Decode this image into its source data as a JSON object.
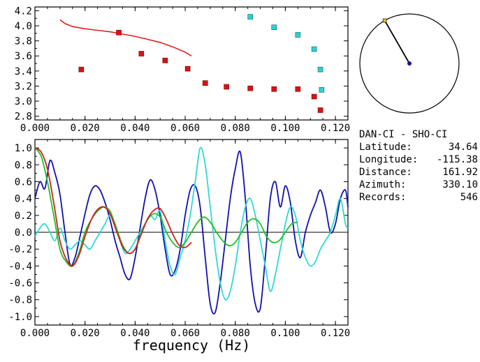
{
  "info": {
    "title": "DAN-CI - SHO-CI",
    "rows": [
      {
        "label": "Latitude:",
        "value": "34.64"
      },
      {
        "label": "Longitude:",
        "value": "-115.38"
      },
      {
        "label": "Distance:",
        "value": "161.92"
      },
      {
        "label": "Azimuth:",
        "value": "330.10"
      },
      {
        "label": "Records:",
        "value": "546"
      }
    ]
  },
  "chart_data": [
    {
      "type": "scatter",
      "xlim": [
        0.0,
        0.125
      ],
      "ylim": [
        2.75,
        4.25
      ],
      "xticks": [
        "0.000",
        "0.020",
        "0.040",
        "0.060",
        "0.080",
        "0.100",
        "0.120"
      ],
      "yticks": [
        "2.8",
        "3.0",
        "3.2",
        "3.4",
        "3.6",
        "3.8",
        "4.0",
        "4.2"
      ],
      "xtick_values": [
        0.0,
        0.02,
        0.04,
        0.06,
        0.08,
        0.1,
        0.12
      ],
      "ytick_values": [
        2.8,
        3.0,
        3.2,
        3.4,
        3.6,
        3.8,
        4.0,
        4.2
      ],
      "colors": {
        "red": "#e01010",
        "cyan": "#30d0d0",
        "line": "#e02020"
      },
      "red_points": {
        "x": [
          0.0185,
          0.0335,
          0.0425,
          0.052,
          0.061,
          0.068,
          0.0765,
          0.086,
          0.0955,
          0.105,
          0.1115,
          0.114
        ],
        "y": [
          3.42,
          3.91,
          3.63,
          3.54,
          3.43,
          3.24,
          3.19,
          3.17,
          3.16,
          3.16,
          3.06,
          2.88
        ]
      },
      "cyan_points": {
        "x": [
          0.086,
          0.0955,
          0.105,
          0.1115,
          0.114,
          0.1145
        ],
        "y": [
          4.12,
          3.98,
          3.88,
          3.69,
          3.42,
          3.15
        ]
      },
      "fit_curve": {
        "x": [
          0.01,
          0.012,
          0.015,
          0.02,
          0.025,
          0.03,
          0.035,
          0.04,
          0.045,
          0.05,
          0.055,
          0.06,
          0.0625
        ],
        "y": [
          4.08,
          4.03,
          3.99,
          3.96,
          3.94,
          3.92,
          3.89,
          3.86,
          3.82,
          3.78,
          3.72,
          3.65,
          3.6
        ]
      }
    },
    {
      "type": "polar",
      "azimuth_deg": 330.1,
      "colors": {
        "needle": "#000000",
        "tip": "#e0c020",
        "center": "#1010a0"
      }
    },
    {
      "type": "line",
      "xlim": [
        0.0,
        0.125
      ],
      "ylim": [
        -1.1,
        1.1
      ],
      "xlabel": "frequency (Hz)",
      "xticks": [
        "0.000",
        "0.020",
        "0.040",
        "0.060",
        "0.080",
        "0.100",
        "0.120"
      ],
      "yticks": [
        "1.0",
        "0.8",
        "0.6",
        "0.4",
        "0.2",
        "0.0",
        "-0.2",
        "-0.4",
        "-0.6",
        "-0.8",
        "-1.0"
      ],
      "xtick_values": [
        0.0,
        0.02,
        0.04,
        0.06,
        0.08,
        0.1,
        0.12
      ],
      "ytick_values": [
        1.0,
        0.8,
        0.6,
        0.4,
        0.2,
        0.0,
        -0.2,
        -0.4,
        -0.6,
        -0.8,
        -1.0
      ],
      "series": [
        {
          "color": "#1010b0",
          "x": [
            0.0,
            0.002,
            0.004,
            0.006,
            0.008,
            0.01,
            0.012,
            0.014,
            0.016,
            0.018,
            0.02,
            0.022,
            0.024,
            0.026,
            0.028,
            0.03,
            0.032,
            0.034,
            0.036,
            0.038,
            0.04,
            0.042,
            0.044,
            0.046,
            0.048,
            0.05,
            0.052,
            0.054,
            0.056,
            0.058,
            0.06,
            0.062,
            0.064,
            0.066,
            0.068,
            0.07,
            0.072,
            0.074,
            0.076,
            0.078,
            0.08,
            0.082,
            0.084,
            0.086,
            0.088,
            0.09,
            0.092,
            0.094,
            0.096,
            0.098,
            0.1,
            0.102,
            0.104,
            0.106,
            0.108,
            0.11,
            0.112,
            0.114,
            0.116,
            0.118,
            0.12,
            0.122,
            0.124,
            0.125
          ],
          "y": [
            0.4,
            0.6,
            0.52,
            0.85,
            0.7,
            0.45,
            0.0,
            -0.38,
            -0.3,
            -0.05,
            0.22,
            0.45,
            0.55,
            0.5,
            0.35,
            0.15,
            -0.1,
            -0.3,
            -0.5,
            -0.55,
            -0.3,
            0.05,
            0.4,
            0.62,
            0.5,
            0.2,
            -0.2,
            -0.5,
            -0.45,
            -0.2,
            0.2,
            0.5,
            0.55,
            0.3,
            -0.3,
            -0.85,
            -0.95,
            -0.6,
            -0.1,
            0.4,
            0.75,
            0.95,
            0.4,
            -0.4,
            -0.85,
            -0.9,
            -0.3,
            0.4,
            0.6,
            0.3,
            0.55,
            0.35,
            -0.1,
            -0.3,
            0.0,
            0.2,
            0.35,
            0.5,
            0.3,
            0.0,
            0.1,
            0.4,
            0.5,
            0.3
          ]
        },
        {
          "color": "#30d8d8",
          "x": [
            0.0,
            0.002,
            0.004,
            0.006,
            0.008,
            0.01,
            0.012,
            0.014,
            0.016,
            0.018,
            0.02,
            0.022,
            0.024,
            0.026,
            0.028,
            0.03,
            0.032,
            0.034,
            0.036,
            0.038,
            0.04,
            0.042,
            0.044,
            0.046,
            0.048,
            0.05,
            0.052,
            0.054,
            0.056,
            0.058,
            0.06,
            0.062,
            0.064,
            0.066,
            0.068,
            0.07,
            0.072,
            0.074,
            0.076,
            0.078,
            0.08,
            0.082,
            0.084,
            0.086,
            0.088,
            0.09,
            0.092,
            0.094,
            0.096,
            0.098,
            0.1,
            0.102,
            0.104,
            0.106,
            0.108,
            0.11,
            0.112,
            0.114,
            0.116,
            0.118,
            0.12,
            0.122,
            0.124,
            0.125
          ],
          "y": [
            -0.05,
            0.05,
            0.1,
            0.0,
            -0.1,
            0.05,
            -0.1,
            -0.2,
            -0.15,
            -0.1,
            -0.15,
            -0.2,
            -0.1,
            0.0,
            0.1,
            0.2,
            0.1,
            -0.1,
            -0.25,
            -0.2,
            -0.1,
            0.0,
            0.1,
            0.2,
            0.15,
            0.25,
            -0.1,
            -0.4,
            -0.5,
            -0.3,
            -0.1,
            0.2,
            0.6,
            1.0,
            0.8,
            0.3,
            -0.2,
            -0.6,
            -0.8,
            -0.7,
            -0.4,
            0.0,
            0.3,
            0.4,
            0.2,
            -0.1,
            -0.4,
            -0.7,
            -0.5,
            -0.2,
            0.1,
            0.3,
            0.2,
            -0.1,
            -0.3,
            -0.4,
            -0.35,
            -0.2,
            -0.1,
            0.0,
            0.2,
            0.4,
            0.1,
            0.05
          ]
        },
        {
          "color": "#20c020",
          "x": [
            0.0,
            0.0025,
            0.005,
            0.0075,
            0.01,
            0.0125,
            0.015,
            0.0175,
            0.02,
            0.0225,
            0.025,
            0.0275,
            0.03,
            0.0325,
            0.035,
            0.0375,
            0.04,
            0.0425,
            0.045,
            0.0475,
            0.05,
            0.0525,
            0.055,
            0.0575,
            0.06,
            0.0625,
            0.065,
            0.0675,
            0.07,
            0.0725,
            0.075,
            0.0775,
            0.08,
            0.0825,
            0.085,
            0.0875,
            0.09,
            0.0925,
            0.095,
            0.0975,
            0.1,
            0.1025,
            0.105
          ],
          "y": [
            1.0,
            0.9,
            0.6,
            0.2,
            -0.2,
            -0.35,
            -0.4,
            -0.25,
            0.0,
            0.15,
            0.25,
            0.3,
            0.25,
            0.05,
            -0.15,
            -0.25,
            -0.2,
            0.0,
            0.15,
            0.22,
            0.18,
            0.0,
            -0.12,
            -0.18,
            -0.12,
            0.0,
            0.12,
            0.18,
            0.12,
            0.0,
            -0.1,
            -0.16,
            -0.12,
            0.0,
            0.12,
            0.16,
            0.1,
            -0.05,
            -0.12,
            -0.1,
            0.0,
            0.1,
            0.12
          ]
        },
        {
          "color": "#d02020",
          "x": [
            0.0,
            0.0025,
            0.005,
            0.0075,
            0.01,
            0.0125,
            0.015,
            0.0175,
            0.02,
            0.0225,
            0.025,
            0.0275,
            0.03,
            0.0325,
            0.035,
            0.0375,
            0.04,
            0.0425,
            0.045,
            0.0475,
            0.05,
            0.0525,
            0.055,
            0.0575,
            0.06,
            0.0625
          ],
          "y": [
            1.0,
            0.95,
            0.75,
            0.35,
            -0.1,
            -0.32,
            -0.4,
            -0.28,
            -0.05,
            0.15,
            0.27,
            0.3,
            0.22,
            0.02,
            -0.17,
            -0.25,
            -0.2,
            -0.02,
            0.16,
            0.26,
            0.28,
            0.15,
            -0.02,
            -0.15,
            -0.18,
            -0.12
          ]
        }
      ]
    }
  ]
}
